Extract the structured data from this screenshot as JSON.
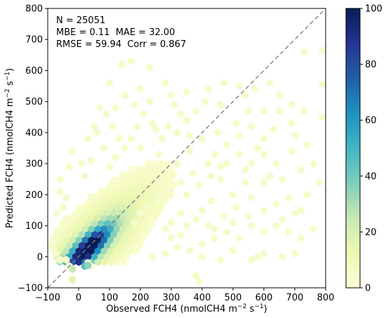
{
  "chart_data": {
    "type": "heatmap",
    "subtype": "hexbin-density-scatter",
    "title": "",
    "xlabel": "Observed FCH4 (nmolCH4 m$^{-2}$ s$^{-1}$)",
    "ylabel": "Predicted FCH4 (nmolCH4 m$^{-2}$ s$^{-1}$)",
    "xlabel_display": {
      "main": "Observed FCH4 (nmolCH4 m",
      "sup1": "−2",
      "mid": " s",
      "sup2": "−1",
      "end": ")"
    },
    "ylabel_display": {
      "main": "Predicted FCH4 (nmolCH4 m",
      "sup1": "−2",
      "mid": " s",
      "sup2": "−1",
      "end": ")"
    },
    "xlim": [
      -100,
      800
    ],
    "ylim": [
      -100,
      800
    ],
    "x_ticks": [
      -100,
      0,
      100,
      200,
      300,
      400,
      500,
      600,
      700,
      800
    ],
    "y_ticks": [
      -100,
      0,
      100,
      200,
      300,
      400,
      500,
      600,
      700,
      800
    ],
    "x_tick_labels": [
      "−100",
      "0",
      "100",
      "200",
      "300",
      "400",
      "500",
      "600",
      "700",
      "800"
    ],
    "y_tick_labels": [
      "−100",
      "0",
      "100",
      "200",
      "300",
      "400",
      "500",
      "600",
      "700",
      "800"
    ],
    "one_to_one_line": true,
    "grid": false,
    "colormap": "YlGnBu",
    "colorbar": {
      "range": [
        0,
        100
      ],
      "ticks": [
        0,
        20,
        40,
        60,
        80,
        100
      ],
      "tick_labels": [
        "0",
        "20",
        "40",
        "60",
        "80",
        "100"
      ],
      "colors": [
        "#ffffd9",
        "#edf8b1",
        "#c7e9b4",
        "#7fcdbb",
        "#41b6c4",
        "#1d91c0",
        "#225ea8",
        "#253494",
        "#081d58"
      ]
    },
    "annotations": [
      "N = 25051",
      "MBE = 0.11  MAE = 32.00",
      "RMSE = 59.94  Corr = 0.867"
    ],
    "stats": {
      "N": 25051,
      "MBE": 0.11,
      "MAE": 32.0,
      "RMSE": 59.94,
      "Corr": 0.867
    },
    "outlier_points": [
      [
        -60,
        250
      ],
      [
        -60,
        210
      ],
      [
        -40,
        190
      ],
      [
        -20,
        340
      ],
      [
        -50,
        160
      ],
      [
        -70,
        140
      ],
      [
        -40,
        120
      ],
      [
        10,
        300
      ],
      [
        30,
        380
      ],
      [
        50,
        420
      ],
      [
        90,
        460
      ],
      [
        120,
        480
      ],
      [
        130,
        380
      ],
      [
        170,
        630
      ],
      [
        140,
        620
      ],
      [
        100,
        560
      ],
      [
        230,
        500
      ],
      [
        280,
        560
      ],
      [
        300,
        520
      ],
      [
        330,
        460
      ],
      [
        180,
        490
      ],
      [
        240,
        430
      ],
      [
        60,
        400
      ],
      [
        80,
        350
      ],
      [
        200,
        350
      ],
      [
        260,
        330
      ],
      [
        350,
        440
      ],
      [
        380,
        470
      ],
      [
        410,
        500
      ],
      [
        420,
        540
      ],
      [
        460,
        490
      ],
      [
        470,
        560
      ],
      [
        520,
        550
      ],
      [
        540,
        520
      ],
      [
        570,
        540
      ],
      [
        620,
        560
      ],
      [
        650,
        520
      ],
      [
        690,
        490
      ],
      [
        730,
        660
      ],
      [
        790,
        665
      ],
      [
        790,
        555
      ],
      [
        790,
        450
      ],
      [
        730,
        470
      ],
      [
        690,
        430
      ],
      [
        630,
        410
      ],
      [
        600,
        380
      ],
      [
        560,
        420
      ],
      [
        520,
        390
      ],
      [
        480,
        360
      ],
      [
        450,
        400
      ],
      [
        440,
        330
      ],
      [
        480,
        300
      ],
      [
        520,
        330
      ],
      [
        560,
        300
      ],
      [
        600,
        330
      ],
      [
        640,
        300
      ],
      [
        690,
        340
      ],
      [
        720,
        280
      ],
      [
        660,
        250
      ],
      [
        600,
        240
      ],
      [
        540,
        240
      ],
      [
        500,
        200
      ],
      [
        460,
        250
      ],
      [
        430,
        180
      ],
      [
        400,
        150
      ],
      [
        380,
        120
      ],
      [
        350,
        100
      ],
      [
        330,
        140
      ],
      [
        300,
        110
      ],
      [
        280,
        90
      ],
      [
        470,
        130
      ],
      [
        510,
        160
      ],
      [
        560,
        190
      ],
      [
        600,
        150
      ],
      [
        640,
        170
      ],
      [
        680,
        190
      ],
      [
        720,
        150
      ],
      [
        760,
        90
      ],
      [
        720,
        60
      ],
      [
        680,
        80
      ],
      [
        640,
        100
      ],
      [
        600,
        80
      ],
      [
        560,
        100
      ],
      [
        520,
        60
      ],
      [
        480,
        80
      ],
      [
        440,
        60
      ],
      [
        400,
        40
      ],
      [
        360,
        20
      ],
      [
        320,
        30
      ],
      [
        280,
        10
      ],
      [
        240,
        0
      ],
      [
        400,
        0
      ],
      [
        500,
        20
      ],
      [
        600,
        10
      ],
      [
        660,
        0
      ],
      [
        560,
        -10
      ],
      [
        460,
        -10
      ],
      [
        380,
        -60
      ],
      [
        390,
        -80
      ],
      [
        580,
        0
      ],
      [
        700,
        10
      ],
      [
        230,
        610
      ],
      [
        200,
        540
      ],
      [
        150,
        520
      ],
      [
        110,
        420
      ],
      [
        70,
        480
      ],
      [
        40,
        310
      ],
      [
        20,
        260
      ],
      [
        -30,
        290
      ],
      [
        -70,
        80
      ],
      [
        -80,
        60
      ],
      [
        -85,
        30
      ],
      [
        -75,
        10
      ],
      [
        -60,
        -10
      ],
      [
        -40,
        -10
      ],
      [
        -90,
        40
      ],
      [
        -30,
        -30
      ],
      [
        -20,
        -70
      ],
      [
        40,
        -30
      ],
      [
        30,
        -20
      ],
      [
        250,
        280
      ],
      [
        290,
        260
      ],
      [
        320,
        300
      ],
      [
        360,
        340
      ],
      [
        400,
        380
      ],
      [
        330,
        240
      ],
      [
        370,
        270
      ],
      [
        420,
        300
      ],
      [
        350,
        200
      ],
      [
        390,
        230
      ],
      [
        430,
        260
      ],
      [
        300,
        200
      ],
      [
        460,
        290
      ],
      [
        510,
        430
      ],
      [
        550,
        470
      ],
      [
        600,
        470
      ],
      [
        170,
        380
      ],
      [
        150,
        350
      ],
      [
        120,
        320
      ],
      [
        100,
        290
      ],
      [
        290,
        420
      ],
      [
        270,
        380
      ],
      [
        250,
        410
      ],
      [
        320,
        400
      ],
      [
        360,
        390
      ],
      [
        650,
        470
      ],
      [
        700,
        390
      ],
      [
        740,
        360
      ],
      [
        760,
        300
      ],
      [
        780,
        240
      ],
      [
        740,
        200
      ],
      [
        700,
        140
      ],
      [
        660,
        120
      ],
      [
        620,
        260
      ],
      [
        580,
        350
      ],
      [
        540,
        280
      ],
      [
        260,
        180
      ],
      [
        220,
        160
      ],
      [
        200,
        140
      ],
      [
        180,
        110
      ],
      [
        240,
        120
      ],
      [
        300,
        60
      ],
      [
        330,
        70
      ],
      [
        420,
        100
      ],
      [
        440,
        90
      ],
      [
        500,
        110
      ],
      [
        550,
        130
      ],
      [
        350,
        530
      ],
      [
        310,
        490
      ],
      [
        210,
        460
      ],
      [
        190,
        420
      ]
    ],
    "density_model": {
      "description": "Core density elongated along 1:1 line; peak near (30, 25).",
      "peak_center": [
        30,
        25
      ],
      "max_count": 100
    }
  }
}
